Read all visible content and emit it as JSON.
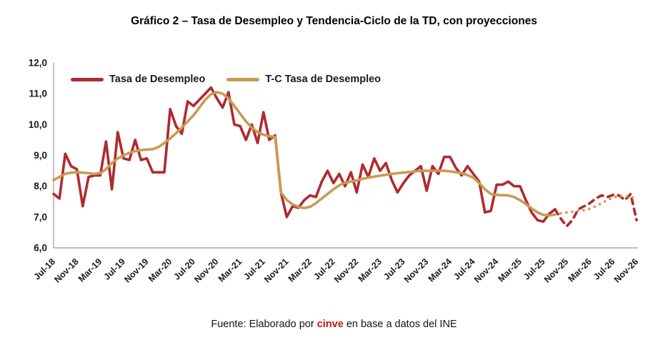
{
  "title": "Gráfico 2 – Tasa de Desempleo y Tendencia-Ciclo de la TD, con proyecciones",
  "legend": [
    {
      "label": "Tasa de Desempleo",
      "color": "#B02A30"
    },
    {
      "label": "T-C Tasa de Desempleo",
      "color": "#C89B52"
    }
  ],
  "footer": {
    "prefix": "Fuente: Elaborado por ",
    "brand": "cinve",
    "suffix": " en base a datos del INE",
    "brand_color": "#CC1111"
  },
  "chart_data": {
    "type": "line",
    "title": "Gráfico 2 – Tasa de Desempleo y Tendencia-Ciclo de la TD, con proyecciones",
    "xlabel": "",
    "ylabel": "",
    "ylim": [
      6,
      12
    ],
    "grid": false,
    "legend_position": "top-left",
    "y_ticks": [
      {
        "value": 12,
        "label": "12,0"
      },
      {
        "value": 11,
        "label": "11,0"
      },
      {
        "value": 10,
        "label": "10,0"
      },
      {
        "value": 9,
        "label": "9,0"
      },
      {
        "value": 8,
        "label": "8,0"
      },
      {
        "value": 7,
        "label": "7,0"
      },
      {
        "value": 6,
        "label": "6,0"
      }
    ],
    "x_tick_interval": 4,
    "projection_start_index": 87,
    "projection_note": "values from Oct-25 onward are projections drawn dashed/dotted",
    "categories": [
      "Jul-18",
      "Aug-18",
      "Sep-18",
      "Oct-18",
      "Nov-18",
      "Dec-18",
      "Jan-19",
      "Feb-19",
      "Mar-19",
      "Apr-19",
      "May-19",
      "Jun-19",
      "Jul-19",
      "Aug-19",
      "Sep-19",
      "Oct-19",
      "Nov-19",
      "Dec-19",
      "Jan-20",
      "Feb-20",
      "Mar-20",
      "Apr-20",
      "May-20",
      "Jun-20",
      "Jul-20",
      "Aug-20",
      "Sep-20",
      "Oct-20",
      "Nov-20",
      "Dec-20",
      "Jan-21",
      "Feb-21",
      "Mar-21",
      "Apr-21",
      "May-21",
      "Jun-21",
      "Jul-21",
      "Aug-21",
      "Sep-21",
      "Oct-21",
      "Nov-21",
      "Dec-21",
      "Jan-22",
      "Feb-22",
      "Mar-22",
      "Apr-22",
      "May-22",
      "Jun-22",
      "Jul-22",
      "Aug-22",
      "Sep-22",
      "Oct-22",
      "Nov-22",
      "Dec-22",
      "Jan-23",
      "Feb-23",
      "Mar-23",
      "Apr-23",
      "May-23",
      "Jun-23",
      "Jul-23",
      "Aug-23",
      "Sep-23",
      "Oct-23",
      "Nov-23",
      "Dec-23",
      "Jan-24",
      "Feb-24",
      "Mar-24",
      "Apr-24",
      "May-24",
      "Jun-24",
      "Jul-24",
      "Aug-24",
      "Sep-24",
      "Oct-24",
      "Nov-24",
      "Dec-24",
      "Jan-25",
      "Feb-25",
      "Mar-25",
      "Apr-25",
      "May-25",
      "Jun-25",
      "Jul-25",
      "Aug-25",
      "Sep-25",
      "Oct-25",
      "Nov-25",
      "Dec-25",
      "Jan-26",
      "Feb-26",
      "Mar-26",
      "Apr-26",
      "May-26",
      "Jun-26",
      "Jul-26",
      "Aug-26",
      "Sep-26",
      "Oct-26",
      "Nov-26"
    ],
    "series": [
      {
        "name": "Tasa de Desempleo",
        "color": "#B02A30",
        "style": "solid, dashed projection",
        "values": [
          7.75,
          7.6,
          9.05,
          8.65,
          8.55,
          7.35,
          8.3,
          8.35,
          8.35,
          9.45,
          7.9,
          9.75,
          8.9,
          8.85,
          9.5,
          8.85,
          8.9,
          8.45,
          8.45,
          8.45,
          10.5,
          9.95,
          9.7,
          10.75,
          10.6,
          10.8,
          11.0,
          11.2,
          10.85,
          10.55,
          11.05,
          10.0,
          9.95,
          9.5,
          10.0,
          9.4,
          10.4,
          9.5,
          9.65,
          7.8,
          7.0,
          7.35,
          7.3,
          7.55,
          7.7,
          7.65,
          8.15,
          8.5,
          8.1,
          8.4,
          8.0,
          8.45,
          7.8,
          8.7,
          8.3,
          8.9,
          8.5,
          8.75,
          8.2,
          7.8,
          8.1,
          8.35,
          8.5,
          8.65,
          7.85,
          8.65,
          8.4,
          8.95,
          8.95,
          8.6,
          8.35,
          8.65,
          8.4,
          8.15,
          7.15,
          7.2,
          8.05,
          8.05,
          8.15,
          8.0,
          8.0,
          7.55,
          7.15,
          6.9,
          6.85,
          7.1,
          7.25,
          6.95,
          6.7,
          6.9,
          7.25,
          7.35,
          7.45,
          7.6,
          7.7,
          7.65,
          7.72,
          7.7,
          7.55,
          7.75,
          6.9
        ]
      },
      {
        "name": "T-C Tasa de Desempleo",
        "color": "#C89B52",
        "style": "solid, dotted projection",
        "values": [
          8.2,
          8.3,
          8.4,
          8.44,
          8.45,
          8.44,
          8.42,
          8.4,
          8.42,
          8.55,
          8.75,
          8.9,
          9.0,
          9.08,
          9.14,
          9.17,
          9.19,
          9.2,
          9.27,
          9.4,
          9.55,
          9.72,
          9.9,
          10.1,
          10.3,
          10.55,
          10.8,
          10.98,
          11.05,
          11.0,
          10.85,
          10.6,
          10.35,
          10.1,
          9.9,
          9.75,
          9.67,
          9.62,
          9.6,
          7.8,
          7.55,
          7.41,
          7.33,
          7.29,
          7.33,
          7.45,
          7.6,
          7.75,
          7.9,
          8.03,
          8.11,
          8.15,
          8.19,
          8.24,
          8.28,
          8.31,
          8.34,
          8.37,
          8.4,
          8.42,
          8.44,
          8.46,
          8.48,
          8.5,
          8.5,
          8.5,
          8.5,
          8.5,
          8.48,
          8.45,
          8.42,
          8.36,
          8.28,
          8.1,
          7.9,
          7.75,
          7.72,
          7.71,
          7.7,
          7.65,
          7.55,
          7.42,
          7.28,
          7.15,
          7.07,
          7.05,
          7.08,
          7.12,
          7.15,
          7.17,
          7.2,
          7.22,
          7.27,
          7.35,
          7.45,
          7.55,
          7.63,
          7.68,
          7.68,
          7.65,
          7.6
        ]
      }
    ]
  }
}
